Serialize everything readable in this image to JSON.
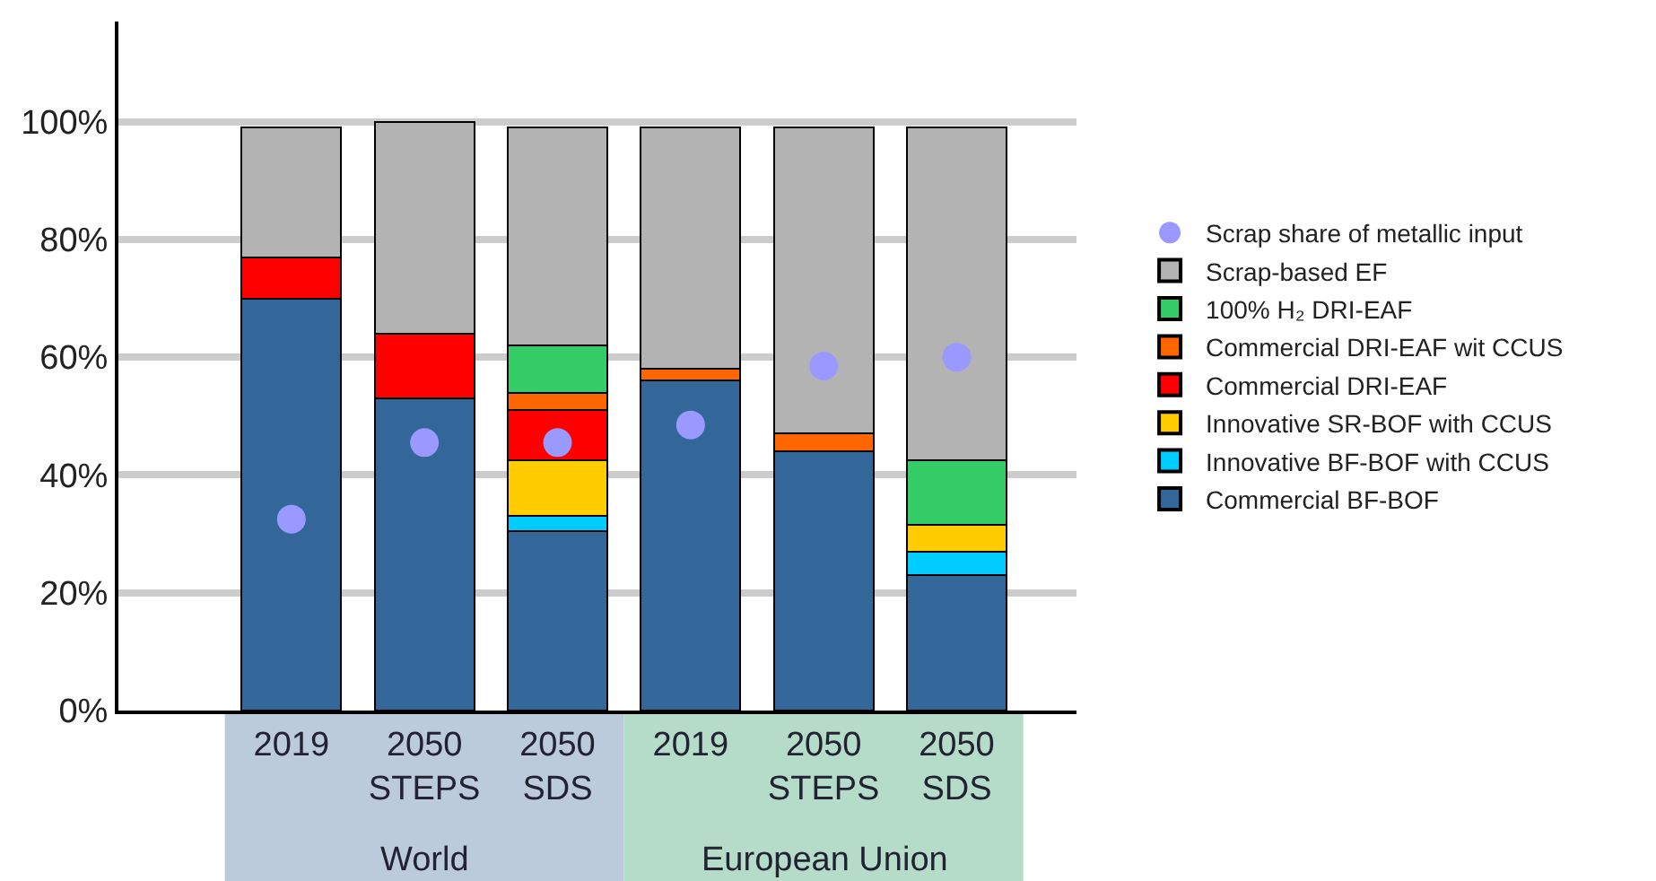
{
  "chart_data": {
    "type": "bar",
    "stacked": true,
    "categories": [
      "2019",
      "2050 STEPS",
      "2050 SDS",
      "2019",
      "2050 STEPS",
      "2050 SDS"
    ],
    "series": [
      {
        "name": "Commercial BF-BOF",
        "color": "#336699",
        "values": [
          70,
          53,
          30.5,
          56,
          44,
          23
        ]
      },
      {
        "name": "Innovative BF-BOF with CCUS",
        "color": "#00ccff",
        "values": [
          null,
          null,
          2.5,
          null,
          null,
          4
        ]
      },
      {
        "name": "Innovative SR-BOF with CCUS",
        "color": "#ffcc00",
        "values": [
          null,
          null,
          9.5,
          null,
          null,
          4.5
        ]
      },
      {
        "name": "Commercial DRI-EAF",
        "color": "#ff0000",
        "values": [
          7,
          11,
          8.5,
          null,
          null,
          null
        ]
      },
      {
        "name": "Commercial DRI-EAF wit CCUS",
        "color": "#ff6600",
        "values": [
          null,
          null,
          3,
          2,
          3,
          null
        ]
      },
      {
        "name": "100% H₂ DRI-EAF",
        "color": "#33cc66",
        "values": [
          null,
          null,
          8,
          null,
          null,
          11
        ]
      },
      {
        "name": "Scrap-based EF",
        "color": "#b3b3b3",
        "values": [
          22,
          36,
          37,
          41,
          52,
          56.5
        ]
      },
      {
        "name": "Scrap share of metallic input",
        "type": "scatter",
        "marker": "circle",
        "color": "#9999ff",
        "values": [
          32.5,
          45.5,
          45.5,
          48.5,
          58.5,
          60
        ]
      }
    ],
    "ylim": [
      0,
      117
    ],
    "yticks": [
      {
        "value": 0,
        "label": "0%"
      },
      {
        "value": 20,
        "label": "20%"
      },
      {
        "value": 40,
        "label": "40%"
      },
      {
        "value": 60,
        "label": "60%"
      },
      {
        "value": 80,
        "label": "80%"
      },
      {
        "value": 100,
        "label": "100%"
      }
    ],
    "grid": "y",
    "legend": "right",
    "annotations": [
      "World",
      "European Union"
    ]
  }
}
